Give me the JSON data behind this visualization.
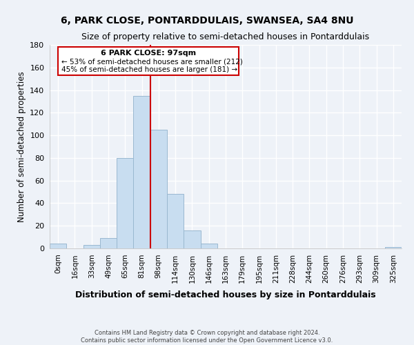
{
  "title1": "6, PARK CLOSE, PONTARDDULAIS, SWANSEA, SA4 8NU",
  "title2": "Size of property relative to semi-detached houses in Pontarddulais",
  "xlabel": "Distribution of semi-detached houses by size in Pontarddulais",
  "ylabel": "Number of semi-detached properties",
  "footer1": "Contains HM Land Registry data © Crown copyright and database right 2024.",
  "footer2": "Contains public sector information licensed under the Open Government Licence v3.0.",
  "bar_labels": [
    "0sqm",
    "16sqm",
    "33sqm",
    "49sqm",
    "65sqm",
    "81sqm",
    "98sqm",
    "114sqm",
    "130sqm",
    "146sqm",
    "163sqm",
    "179sqm",
    "195sqm",
    "211sqm",
    "228sqm",
    "244sqm",
    "260sqm",
    "276sqm",
    "293sqm",
    "309sqm",
    "325sqm"
  ],
  "bar_values": [
    4,
    0,
    3,
    9,
    80,
    135,
    105,
    48,
    16,
    4,
    0,
    0,
    0,
    0,
    0,
    0,
    0,
    0,
    0,
    0,
    1
  ],
  "highlight_index": 5,
  "bar_color_normal": "#c8ddf0",
  "bar_color_highlight": "#c8ddf0",
  "bar_edge_color": "#9ab8d0",
  "highlight_line_color": "#cc0000",
  "box_color": "#ffffff",
  "box_edge_color": "#cc0000",
  "annotation_title": "6 PARK CLOSE: 97sqm",
  "annotation_line1": "← 53% of semi-detached houses are smaller (212)",
  "annotation_line2": "45% of semi-detached houses are larger (181) →",
  "ylim": [
    0,
    180
  ],
  "yticks": [
    0,
    20,
    40,
    60,
    80,
    100,
    120,
    140,
    160,
    180
  ],
  "background_color": "#eef2f8",
  "grid_color": "#ffffff",
  "vline_x_index": 6
}
